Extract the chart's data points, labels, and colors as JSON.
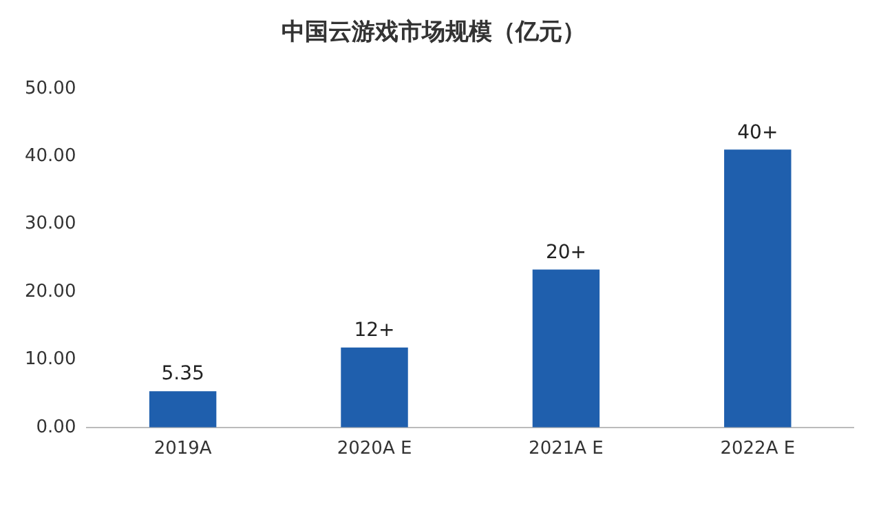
{
  "chart_data": {
    "type": "bar",
    "title": "中国云游戏市场规模（亿元）",
    "categories": [
      "2019A",
      "2020A E",
      "2021A E",
      "2022A E"
    ],
    "values": [
      5.35,
      11.8,
      23.3,
      41.0
    ],
    "value_labels": [
      "5.35",
      "12+",
      "20+",
      "40+"
    ],
    "color": "#1f5fad",
    "ylim": [
      0,
      50
    ],
    "yticks": [
      {
        "value": 0,
        "label": "0.00"
      },
      {
        "value": 10,
        "label": "10.00"
      },
      {
        "value": 20,
        "label": "20.00"
      },
      {
        "value": 30,
        "label": "30.00"
      },
      {
        "value": 40,
        "label": "40.00"
      },
      {
        "value": 50,
        "label": "50.00"
      }
    ],
    "grid": false
  }
}
